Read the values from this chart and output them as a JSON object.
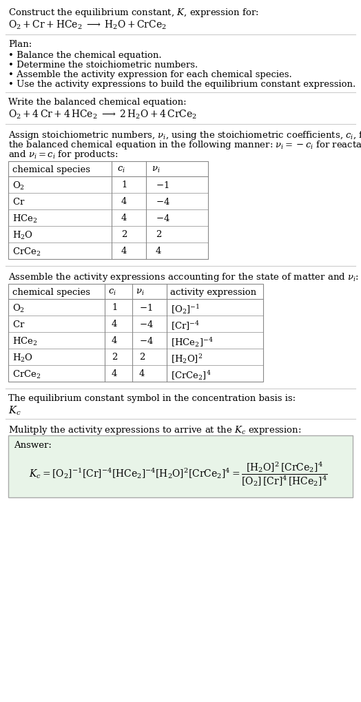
{
  "title_line1": "Construct the equilibrium constant, $K$, expression for:",
  "reaction_unbalanced": "$\\mathrm{O_2 + Cr + HCe_2 \\;\\longrightarrow\\; H_2O + CrCe_2}$",
  "plan_header": "Plan:",
  "plan_items": [
    "\\textbf{\\cdot} Balance the chemical equation.",
    "\\textbf{\\cdot} Determine the stoichiometric numbers.",
    "\\textbf{\\cdot} Assemble the activity expression for each chemical species.",
    "\\textbf{\\cdot} Use the activity expressions to build the equilibrium constant expression."
  ],
  "balanced_header": "Write the balanced chemical equation:",
  "reaction_balanced": "$\\mathrm{O_2 + 4\\,Cr + 4\\,HCe_2 \\;\\longrightarrow\\; 2\\,H_2O + 4\\,CrCe_2}$",
  "stoich_header": "Assign stoichiometric numbers, $\\nu_i$, using the stoichiometric coefficients, $c_i$, from\nthe balanced chemical equation in the following manner: $\\nu_i = -c_i$ for reactants\nand $\\nu_i = c_i$ for products:",
  "table1_cols": [
    "chemical species",
    "$c_i$",
    "$\\nu_i$"
  ],
  "table1_rows": [
    [
      "$\\mathrm{O_2}$",
      "1",
      "$-1$"
    ],
    [
      "$\\mathrm{Cr}$",
      "4",
      "$-4$"
    ],
    [
      "$\\mathrm{HCe_2}$",
      "4",
      "$-4$"
    ],
    [
      "$\\mathrm{H_2O}$",
      "2",
      "2"
    ],
    [
      "$\\mathrm{CrCe_2}$",
      "4",
      "4"
    ]
  ],
  "activity_header": "Assemble the activity expressions accounting for the state of matter and $\\nu_i$:",
  "table2_cols": [
    "chemical species",
    "$c_i$",
    "$\\nu_i$",
    "activity expression"
  ],
  "table2_rows": [
    [
      "$\\mathrm{O_2}$",
      "1",
      "$-1$",
      "$[\\mathrm{O_2}]^{-1}$"
    ],
    [
      "$\\mathrm{Cr}$",
      "4",
      "$-4$",
      "$[\\mathrm{Cr}]^{-4}$"
    ],
    [
      "$\\mathrm{HCe_2}$",
      "4",
      "$-4$",
      "$[\\mathrm{HCe_2}]^{-4}$"
    ],
    [
      "$\\mathrm{H_2O}$",
      "2",
      "2",
      "$[\\mathrm{H_2O}]^{2}$"
    ],
    [
      "$\\mathrm{CrCe_2}$",
      "4",
      "4",
      "$[\\mathrm{CrCe_2}]^{4}$"
    ]
  ],
  "kc_header": "The equilibrium constant symbol in the concentration basis is:",
  "kc_symbol": "$K_c$",
  "multiply_header": "Mulitply the activity expressions to arrive at the $K_c$ expression:",
  "answer_label": "Answer:",
  "answer_line1": "$K_c = [\\mathrm{O_2}]^{-1}\\,[\\mathrm{Cr}]^{-4}\\,[\\mathrm{HCe_2}]^{-4}\\,[\\mathrm{H_2O}]^{2}\\,[\\mathrm{CrCe_2}]^{4} = \\dfrac{[\\mathrm{H_2O}]^{2}\\,[\\mathrm{CrCe_2}]^{4}}{[\\mathrm{O_2}]\\,[\\mathrm{Cr}]^{4}\\,[\\mathrm{HCe_2}]^{4}}$",
  "bg_color": "#ffffff",
  "text_color": "#000000",
  "table_border_color": "#888888",
  "answer_box_color": "#e8f4e8",
  "answer_box_border": "#aaaaaa",
  "font_size": 9.5,
  "fig_width": 5.24,
  "fig_height": 10.19
}
